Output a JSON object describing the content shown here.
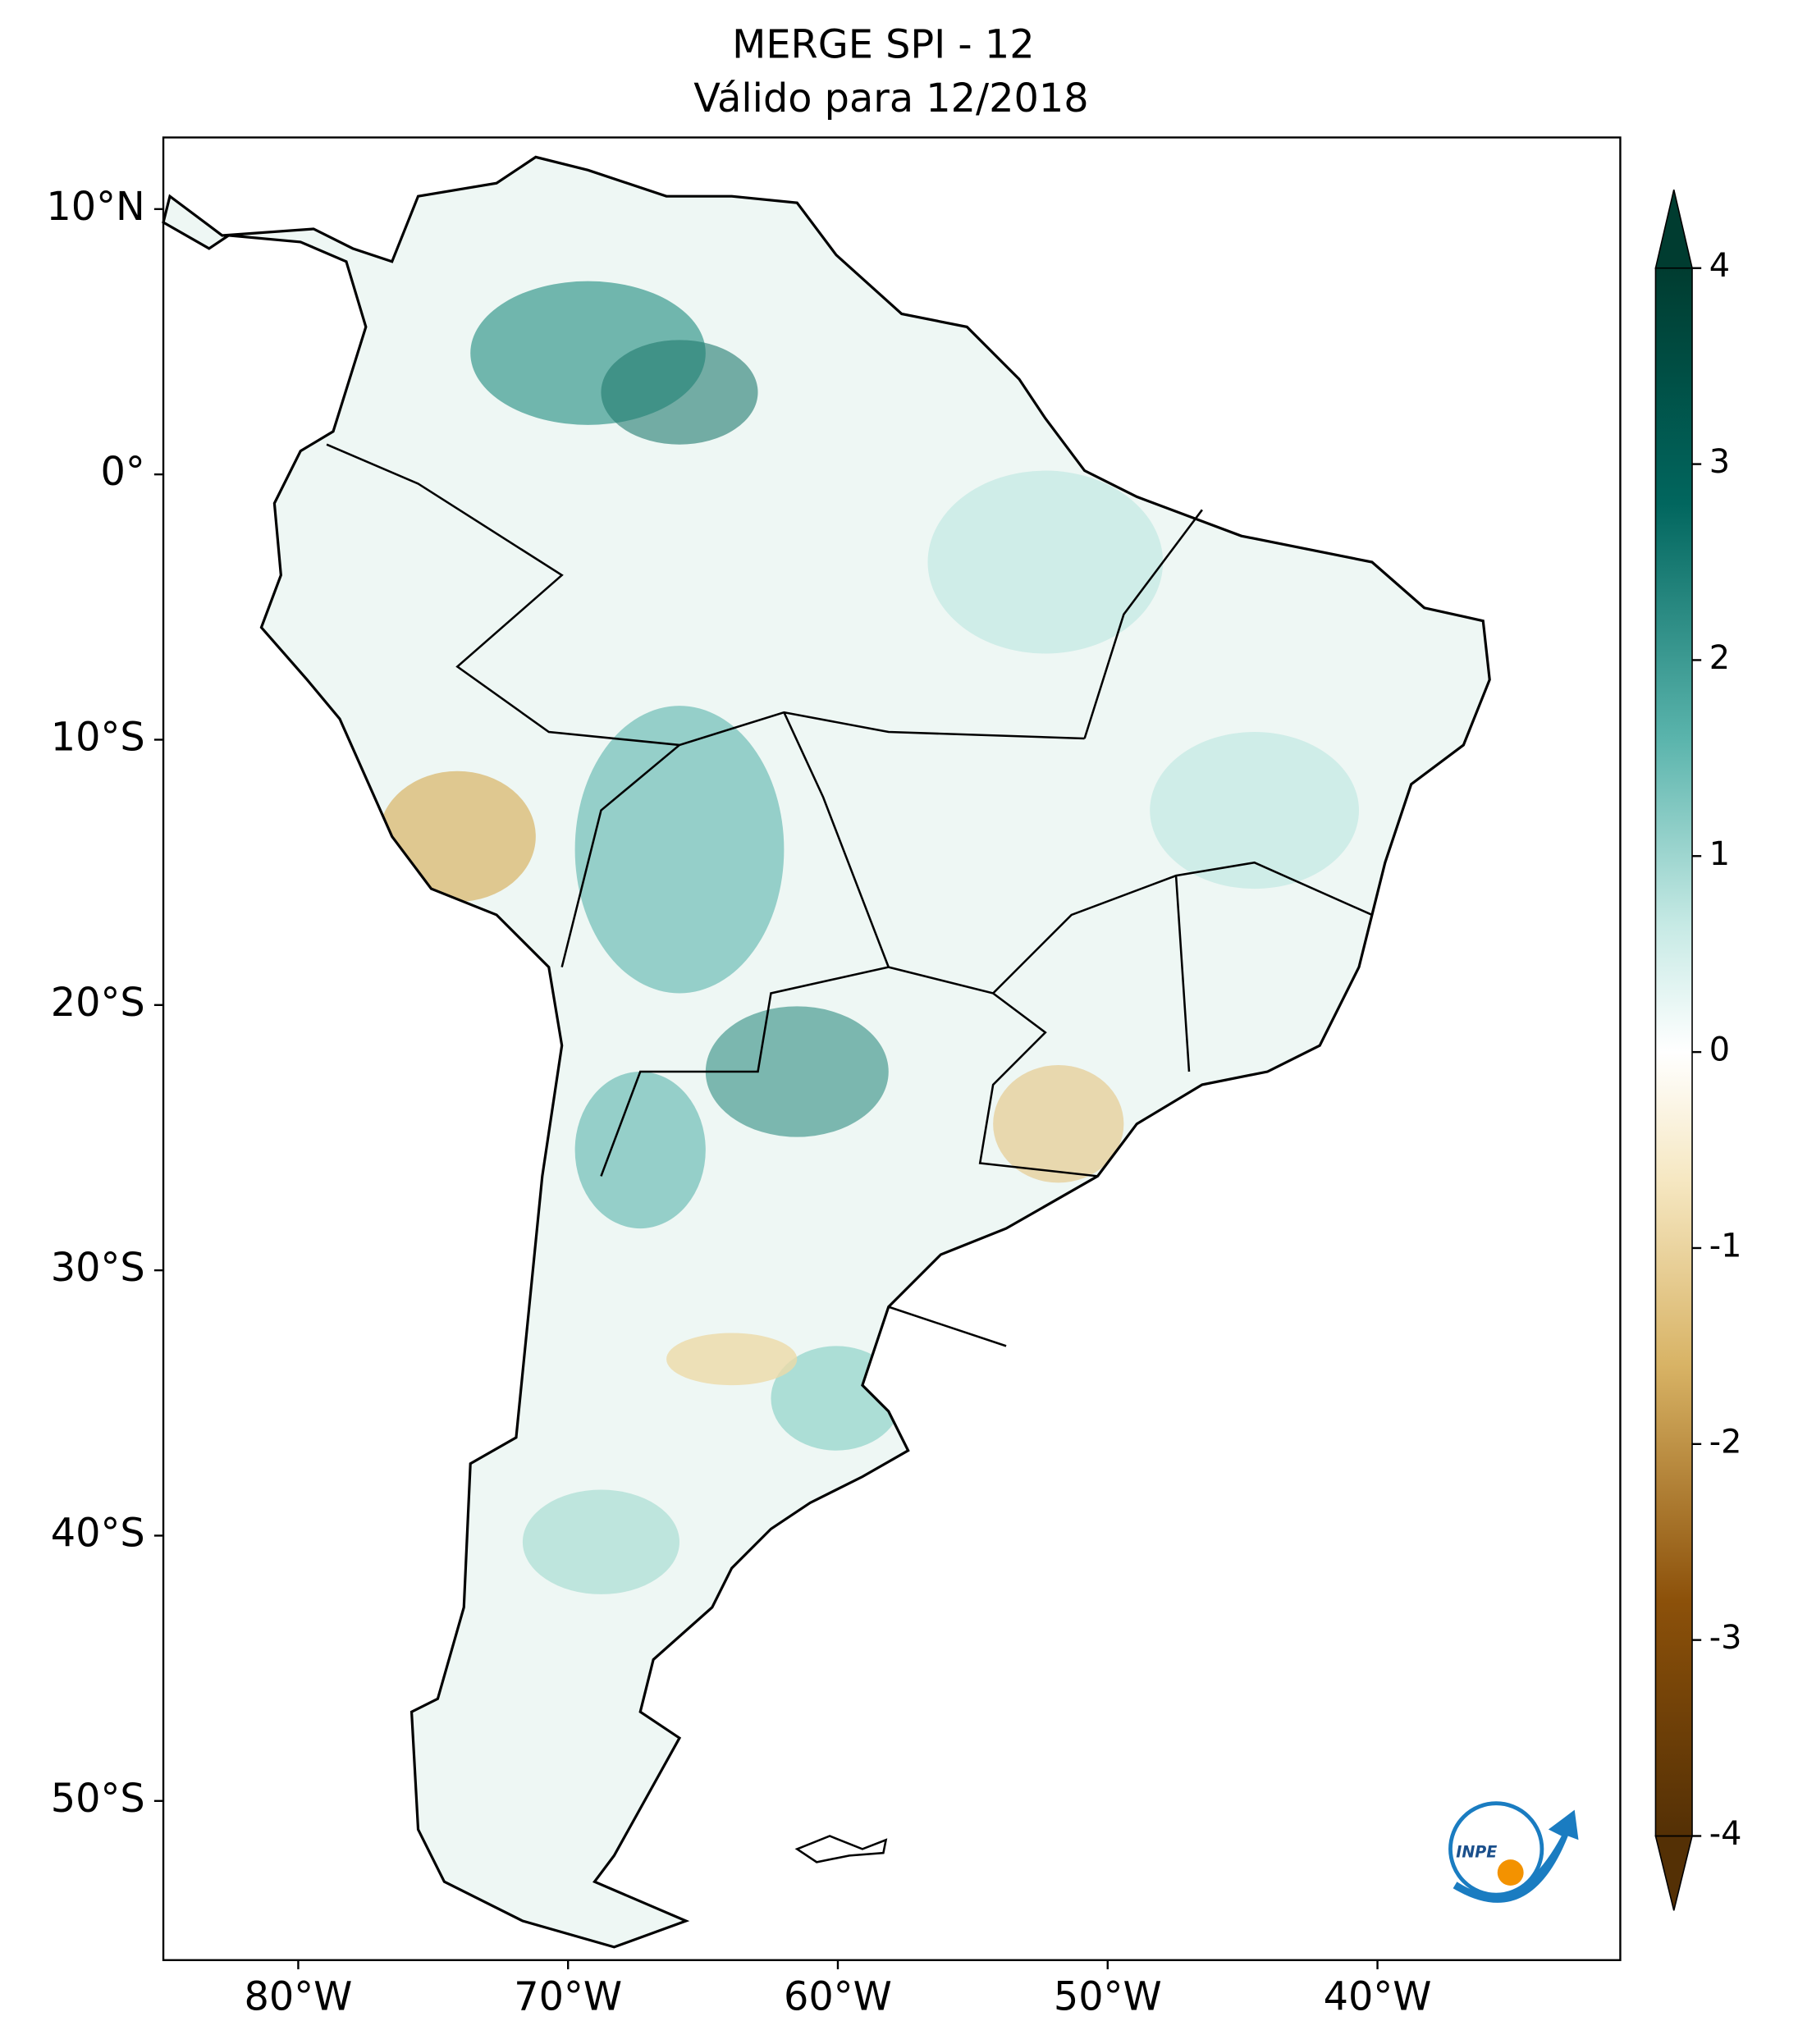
{
  "chart_data": {
    "type": "map",
    "title": "MERGE   SPI - 12",
    "subtitle": "Válido para 12/2018",
    "xlim": [
      -85,
      -31
    ],
    "ylim": [
      -56,
      12.7
    ],
    "xticks": [
      {
        "value": -80,
        "label": "80°W"
      },
      {
        "value": -70,
        "label": "70°W"
      },
      {
        "value": -60,
        "label": "60°W"
      },
      {
        "value": -50,
        "label": "50°W"
      },
      {
        "value": -40,
        "label": "40°W"
      }
    ],
    "yticks": [
      {
        "value": 10,
        "label": "10°N"
      },
      {
        "value": 0,
        "label": "0°"
      },
      {
        "value": -10,
        "label": "10°S"
      },
      {
        "value": -20,
        "label": "20°S"
      },
      {
        "value": -30,
        "label": "30°S"
      },
      {
        "value": -40,
        "label": "40°S"
      },
      {
        "value": -50,
        "label": "50°S"
      }
    ],
    "colorbar": {
      "lim": [
        -4,
        4
      ],
      "ticks": [
        -4,
        -3,
        -2,
        -1,
        0,
        1,
        2,
        3,
        4
      ]
    },
    "logo_text": "INPE"
  }
}
